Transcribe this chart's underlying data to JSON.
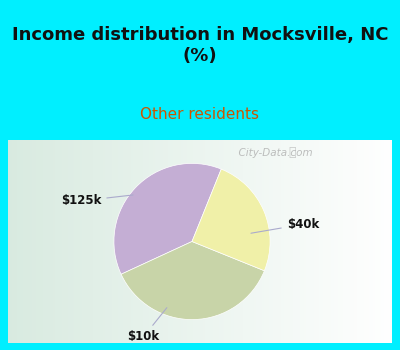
{
  "title": "Income distribution in Mocksville, NC\n(%)",
  "subtitle": "Other residents",
  "slices": [
    {
      "label": "$40k",
      "value": 38,
      "color": "#c4aed4"
    },
    {
      "label": "$10k",
      "value": 37,
      "color": "#c8d4a8"
    },
    {
      "label": "$125k",
      "value": 25,
      "color": "#f0f0a8"
    }
  ],
  "bg_color": "#00efff",
  "pie_bg_colors": [
    "#d8edd8",
    "#eaf4ee",
    "#f5faf6"
  ],
  "watermark": "  City-Data.com",
  "startangle": 68,
  "title_fontsize": 13,
  "subtitle_fontsize": 11,
  "subtitle_color": "#cc5500"
}
